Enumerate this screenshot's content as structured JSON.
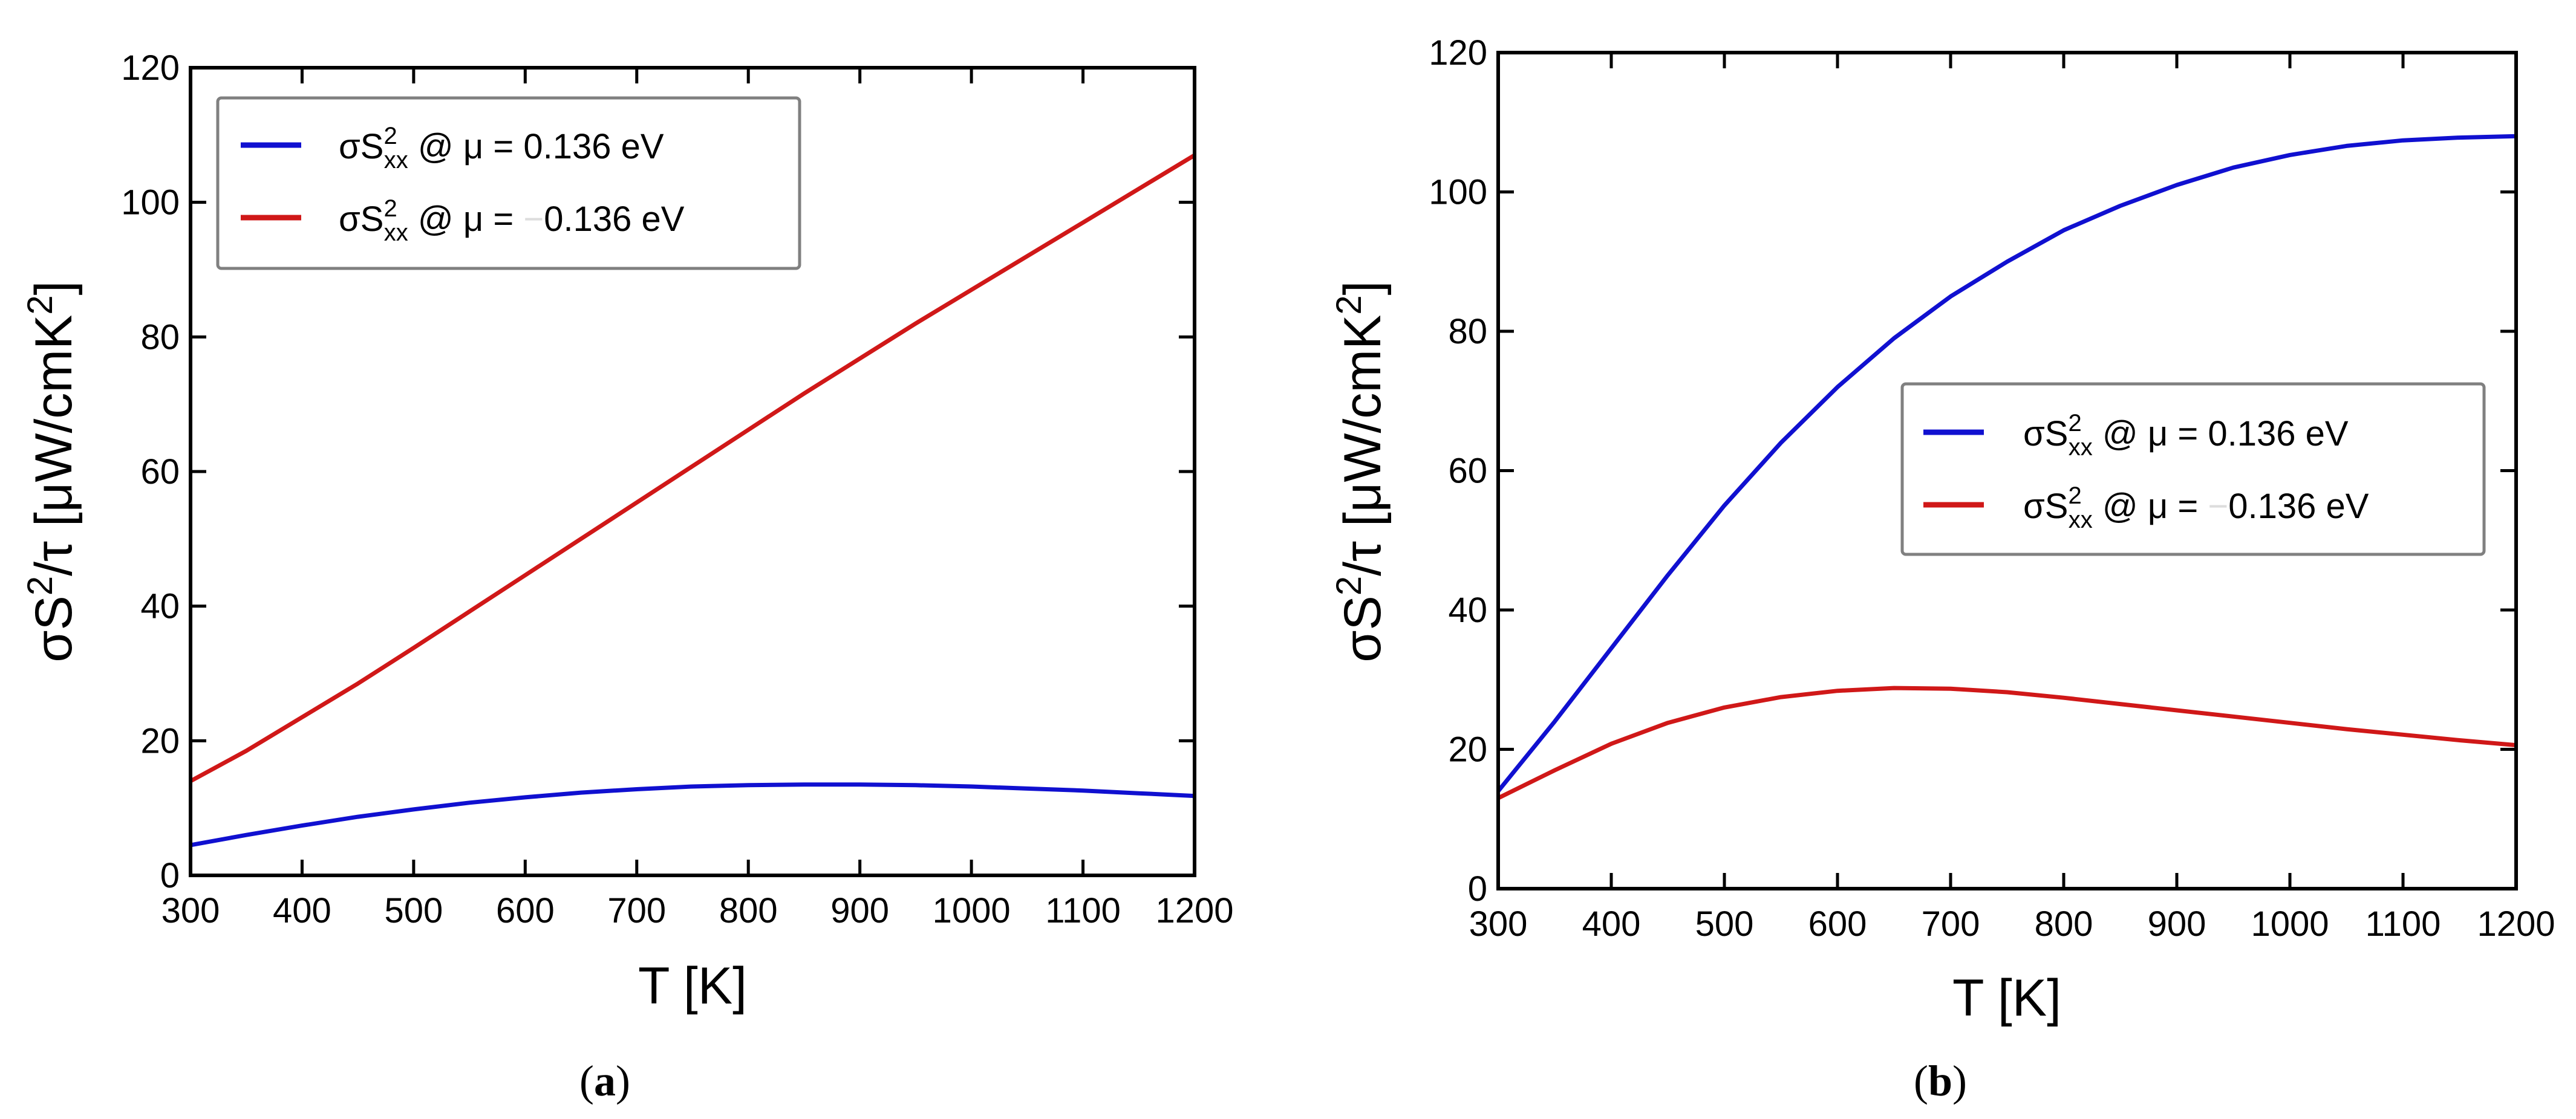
{
  "chart_data": [
    {
      "type": "line",
      "panel": "a",
      "caption": {
        "open": "(",
        "letter": "a",
        "close": ")"
      },
      "xlabel": "T [K]",
      "ylabel": {
        "base": "σS",
        "sup": "2",
        "rest": "/τ [μW/cmK",
        "sup2": "2",
        "end": "]"
      },
      "xlim": [
        300,
        1200
      ],
      "ylim": [
        0,
        120
      ],
      "xticks": [
        300,
        400,
        500,
        600,
        700,
        800,
        900,
        1000,
        1100,
        1200
      ],
      "yticks": [
        0,
        20,
        40,
        60,
        80,
        100,
        120
      ],
      "legend_position": "top-left",
      "series": [
        {
          "name": "σS2xx @ μ = 0.136 eV",
          "label": {
            "base": "σS",
            "sup": "2",
            "sub": "xx",
            "rest": " @ μ = 0.136 eV"
          },
          "color": "#1010d0",
          "x": [
            300,
            350,
            400,
            450,
            500,
            550,
            600,
            650,
            700,
            750,
            800,
            850,
            900,
            950,
            1000,
            1050,
            1100,
            1150,
            1200
          ],
          "y": [
            4.5,
            6.0,
            7.4,
            8.7,
            9.8,
            10.8,
            11.6,
            12.3,
            12.8,
            13.2,
            13.4,
            13.5,
            13.5,
            13.4,
            13.2,
            12.9,
            12.6,
            12.2,
            11.8
          ]
        },
        {
          "name": "σS2xx @ μ = -0.136 eV",
          "label": {
            "base": "σS",
            "sup": "2",
            "sub": "xx",
            "rest": " @ μ = ",
            "faint": "−",
            "rest2": "0.136 eV"
          },
          "color": "#d01818",
          "x": [
            300,
            350,
            400,
            450,
            500,
            550,
            600,
            650,
            700,
            750,
            800,
            850,
            900,
            950,
            1000,
            1050,
            1100,
            1150,
            1200
          ],
          "y": [
            14.0,
            18.5,
            23.5,
            28.5,
            33.8,
            39.2,
            44.6,
            50.0,
            55.4,
            60.8,
            66.2,
            71.6,
            76.8,
            82.0,
            87.0,
            92.0,
            97.0,
            102.0,
            107.0
          ]
        }
      ]
    },
    {
      "type": "line",
      "panel": "b",
      "caption": {
        "open": "(",
        "letter": "b",
        "close": ")"
      },
      "xlabel": "T [K]",
      "ylabel": {
        "base": "σS",
        "sup": "2",
        "rest": "/τ [μW/cmK",
        "sup2": "2",
        "end": "]"
      },
      "xlim": [
        300,
        1200
      ],
      "ylim": [
        0,
        120
      ],
      "xticks": [
        300,
        400,
        500,
        600,
        700,
        800,
        900,
        1000,
        1100,
        1200
      ],
      "yticks": [
        0,
        20,
        40,
        60,
        80,
        100,
        120
      ],
      "legend_position": "center-right",
      "series": [
        {
          "name": "σS2xx @ μ = 0.136 eV",
          "label": {
            "base": "σS",
            "sup": "2",
            "sub": "xx",
            "rest": " @ μ = 0.136 eV"
          },
          "color": "#1010d0",
          "x": [
            300,
            350,
            400,
            450,
            500,
            550,
            600,
            650,
            700,
            750,
            800,
            850,
            900,
            950,
            1000,
            1050,
            1100,
            1150,
            1200
          ],
          "y": [
            14.0,
            24.0,
            34.5,
            45.0,
            55.0,
            64.0,
            72.0,
            79.0,
            85.0,
            90.0,
            94.5,
            98.0,
            101.0,
            103.5,
            105.3,
            106.6,
            107.4,
            107.8,
            108.0
          ]
        },
        {
          "name": "σS2xx @ μ = -0.136 eV",
          "label": {
            "base": "σS",
            "sup": "2",
            "sub": "xx",
            "rest": " @ μ = ",
            "faint": "−",
            "rest2": "0.136 eV"
          },
          "color": "#d01818",
          "x": [
            300,
            350,
            400,
            450,
            500,
            550,
            600,
            650,
            700,
            750,
            800,
            850,
            900,
            950,
            1000,
            1050,
            1100,
            1150,
            1200
          ],
          "y": [
            13.0,
            17.0,
            20.8,
            23.8,
            26.0,
            27.5,
            28.4,
            28.8,
            28.7,
            28.2,
            27.4,
            26.5,
            25.6,
            24.7,
            23.8,
            22.9,
            22.1,
            21.3,
            20.6
          ]
        }
      ]
    }
  ]
}
